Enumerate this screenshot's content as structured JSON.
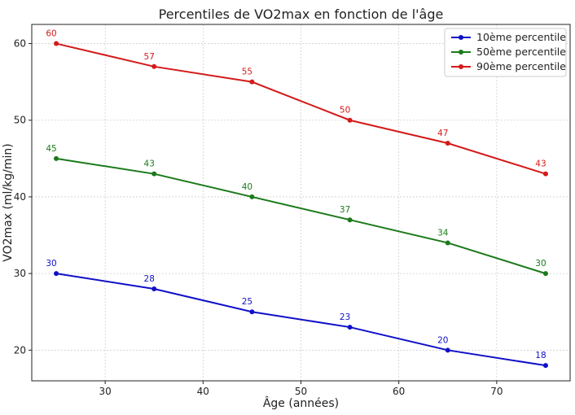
{
  "chart_data": {
    "type": "line",
    "title": "Percentiles de VO2max en fonction de l'âge",
    "xlabel": "Âge (années)",
    "ylabel": "VO2max (ml/kg/min)",
    "x": [
      25,
      35,
      45,
      55,
      65,
      75
    ],
    "xlim": [
      22.5,
      77.5
    ],
    "ylim": [
      16,
      62.5
    ],
    "xticks": [
      30,
      40,
      50,
      60,
      70
    ],
    "yticks": [
      20,
      30,
      40,
      50,
      60
    ],
    "grid": true,
    "legend_position": "top-right",
    "series": [
      {
        "name": "10ème percentile",
        "color": "#1010c8",
        "values": [
          30,
          28,
          25,
          23,
          20,
          18
        ]
      },
      {
        "name": "50ème percentile",
        "color": "#1a7a1a",
        "values": [
          45,
          43,
          40,
          37,
          34,
          30
        ]
      },
      {
        "name": "90ème percentile",
        "color": "#d41a1a",
        "values": [
          60,
          57,
          55,
          50,
          47,
          43
        ]
      }
    ]
  }
}
